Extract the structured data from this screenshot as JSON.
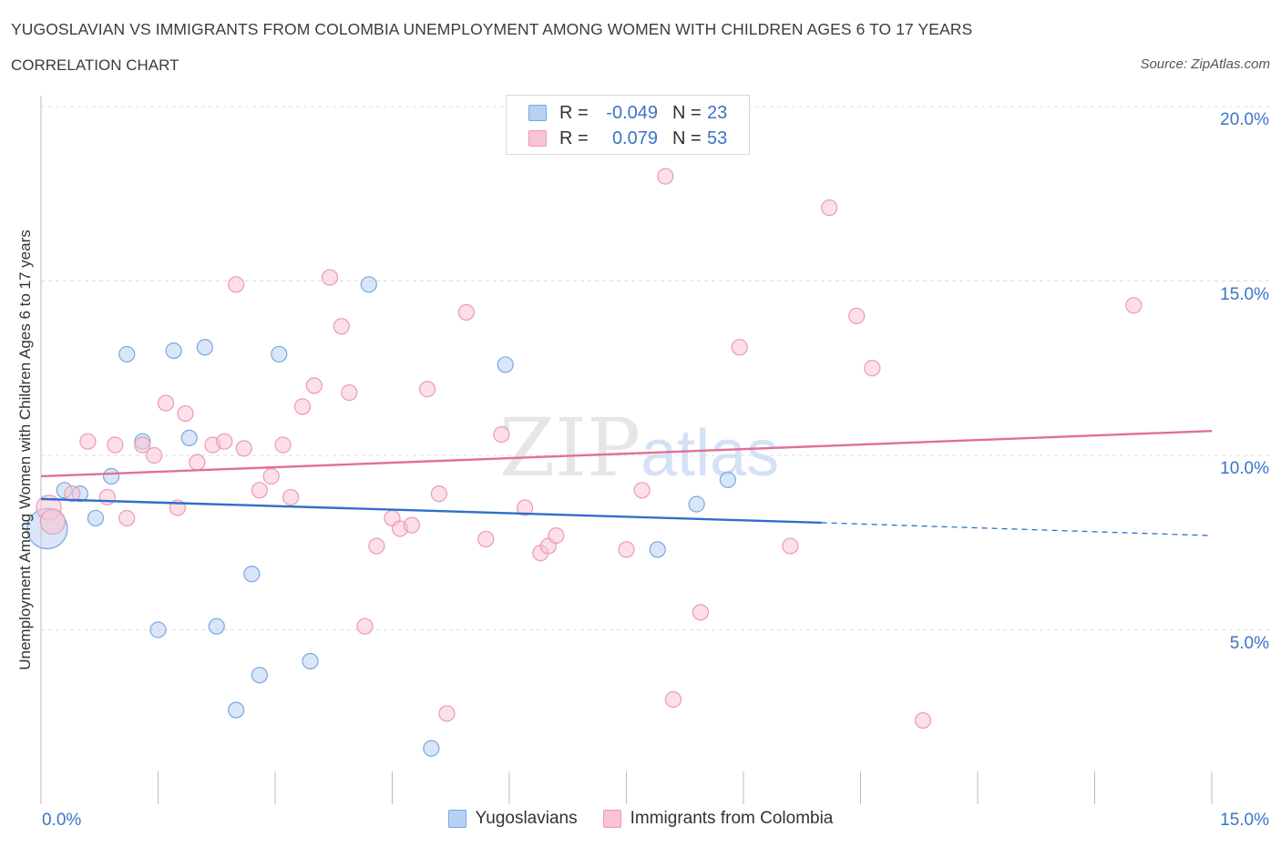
{
  "title": "YUGOSLAVIAN VS IMMIGRANTS FROM COLOMBIA UNEMPLOYMENT AMONG WOMEN WITH CHILDREN AGES 6 TO 17 YEARS",
  "subtitle": "CORRELATION CHART",
  "source": "Source: ZipAtlas.com",
  "watermark": {
    "zip": "ZIP",
    "atlas": "atlas"
  },
  "legend": {
    "rows": [
      {
        "r_label": "R =",
        "r_value": "-0.049",
        "n_label": "N =",
        "n_value": "23"
      },
      {
        "r_label": "R =",
        "r_value": "0.079",
        "n_label": "N =",
        "n_value": "53"
      }
    ]
  },
  "colors": {
    "yugoslavians_fill": "#b8d1f3",
    "yugoslavians_stroke": "#7aa7e0",
    "yugoslavians_line": "#2f6fcb",
    "colombia_fill": "#f9c4d3",
    "colombia_stroke": "#ec9ab1",
    "colombia_line": "#e07098",
    "axis_text": "#3a74c9",
    "grid": "#dddddd"
  },
  "chart_data": {
    "type": "scatter",
    "title": "YUGOSLAVIAN VS IMMIGRANTS FROM COLOMBIA UNEMPLOYMENT AMONG WOMEN WITH CHILDREN AGES 6 TO 17 YEARS",
    "xlabel": "",
    "ylabel": "Unemployment Among Women with Children Ages 6 to 17 years",
    "xlim": [
      0,
      15
    ],
    "ylim": [
      0,
      20
    ],
    "x_tick_labels": [
      "0.0%",
      "15.0%"
    ],
    "y_ticks": [
      5,
      10,
      15,
      20
    ],
    "y_tick_labels": [
      "5.0%",
      "10.0%",
      "15.0%",
      "20.0%"
    ],
    "grid": true,
    "legend_position": "bottom",
    "series": [
      {
        "name": "Yugoslavians",
        "r": -0.049,
        "n": 23,
        "trend": {
          "x0": 0.0,
          "y0": 8.75,
          "x1": 10.0,
          "y1": 8.07,
          "dashed_to_x": 15.0,
          "dashed_to_y": 7.7
        },
        "points": [
          [
            0.08,
            7.9,
            2.6
          ],
          [
            0.3,
            9.0,
            1
          ],
          [
            0.5,
            8.9,
            1
          ],
          [
            0.7,
            8.2,
            1
          ],
          [
            0.9,
            9.4,
            1
          ],
          [
            1.1,
            12.9,
            1
          ],
          [
            1.3,
            10.4,
            1
          ],
          [
            1.5,
            5.0,
            1
          ],
          [
            1.7,
            13.0,
            1
          ],
          [
            1.9,
            10.5,
            1
          ],
          [
            2.1,
            13.1,
            1
          ],
          [
            2.25,
            5.1,
            1
          ],
          [
            2.5,
            2.7,
            1
          ],
          [
            2.7,
            6.6,
            1
          ],
          [
            2.8,
            3.7,
            1
          ],
          [
            3.05,
            12.9,
            1
          ],
          [
            3.45,
            4.1,
            1
          ],
          [
            4.2,
            14.9,
            1
          ],
          [
            5.0,
            1.6,
            1
          ],
          [
            5.95,
            12.6,
            1
          ],
          [
            7.9,
            7.3,
            1
          ],
          [
            8.4,
            8.6,
            1
          ],
          [
            8.8,
            9.3,
            1
          ]
        ]
      },
      {
        "name": "Immigrants from Colombia",
        "r": 0.079,
        "n": 53,
        "trend": {
          "x0": 0.0,
          "y0": 9.4,
          "x1": 15.0,
          "y1": 10.7
        },
        "points": [
          [
            0.1,
            8.5,
            1.6
          ],
          [
            0.15,
            8.1,
            1.6
          ],
          [
            0.4,
            8.9,
            1
          ],
          [
            0.6,
            10.4,
            1
          ],
          [
            0.85,
            8.8,
            1
          ],
          [
            0.95,
            10.3,
            1
          ],
          [
            1.1,
            8.2,
            1
          ],
          [
            1.3,
            10.3,
            1
          ],
          [
            1.45,
            10.0,
            1
          ],
          [
            1.6,
            11.5,
            1
          ],
          [
            1.75,
            8.5,
            1
          ],
          [
            1.85,
            11.2,
            1
          ],
          [
            2.0,
            9.8,
            1
          ],
          [
            2.2,
            10.3,
            1
          ],
          [
            2.35,
            10.4,
            1
          ],
          [
            2.5,
            14.9,
            1
          ],
          [
            2.6,
            10.2,
            1
          ],
          [
            2.8,
            9.0,
            1
          ],
          [
            2.95,
            9.4,
            1
          ],
          [
            3.1,
            10.3,
            1
          ],
          [
            3.2,
            8.8,
            1
          ],
          [
            3.35,
            11.4,
            1
          ],
          [
            3.5,
            12.0,
            1
          ],
          [
            3.7,
            15.1,
            1
          ],
          [
            3.85,
            13.7,
            1
          ],
          [
            3.95,
            11.8,
            1
          ],
          [
            4.15,
            5.1,
            1
          ],
          [
            4.3,
            7.4,
            1
          ],
          [
            4.5,
            8.2,
            1
          ],
          [
            4.6,
            7.9,
            1
          ],
          [
            4.75,
            8.0,
            1
          ],
          [
            4.95,
            11.9,
            1
          ],
          [
            5.1,
            8.9,
            1
          ],
          [
            5.2,
            2.6,
            1
          ],
          [
            5.45,
            14.1,
            1
          ],
          [
            5.7,
            7.6,
            1
          ],
          [
            5.9,
            10.6,
            1
          ],
          [
            6.2,
            8.5,
            1
          ],
          [
            6.4,
            7.2,
            1
          ],
          [
            6.5,
            7.4,
            1
          ],
          [
            6.6,
            7.7,
            1
          ],
          [
            7.5,
            7.3,
            1
          ],
          [
            7.7,
            9.0,
            1
          ],
          [
            8.0,
            18.0,
            1
          ],
          [
            8.1,
            3.0,
            1
          ],
          [
            8.45,
            5.5,
            1
          ],
          [
            8.95,
            13.1,
            1
          ],
          [
            9.6,
            7.4,
            1
          ],
          [
            10.1,
            17.1,
            1
          ],
          [
            10.45,
            14.0,
            1
          ],
          [
            10.65,
            12.5,
            1
          ],
          [
            11.3,
            2.4,
            1
          ],
          [
            14.0,
            14.3,
            1
          ]
        ]
      }
    ]
  }
}
